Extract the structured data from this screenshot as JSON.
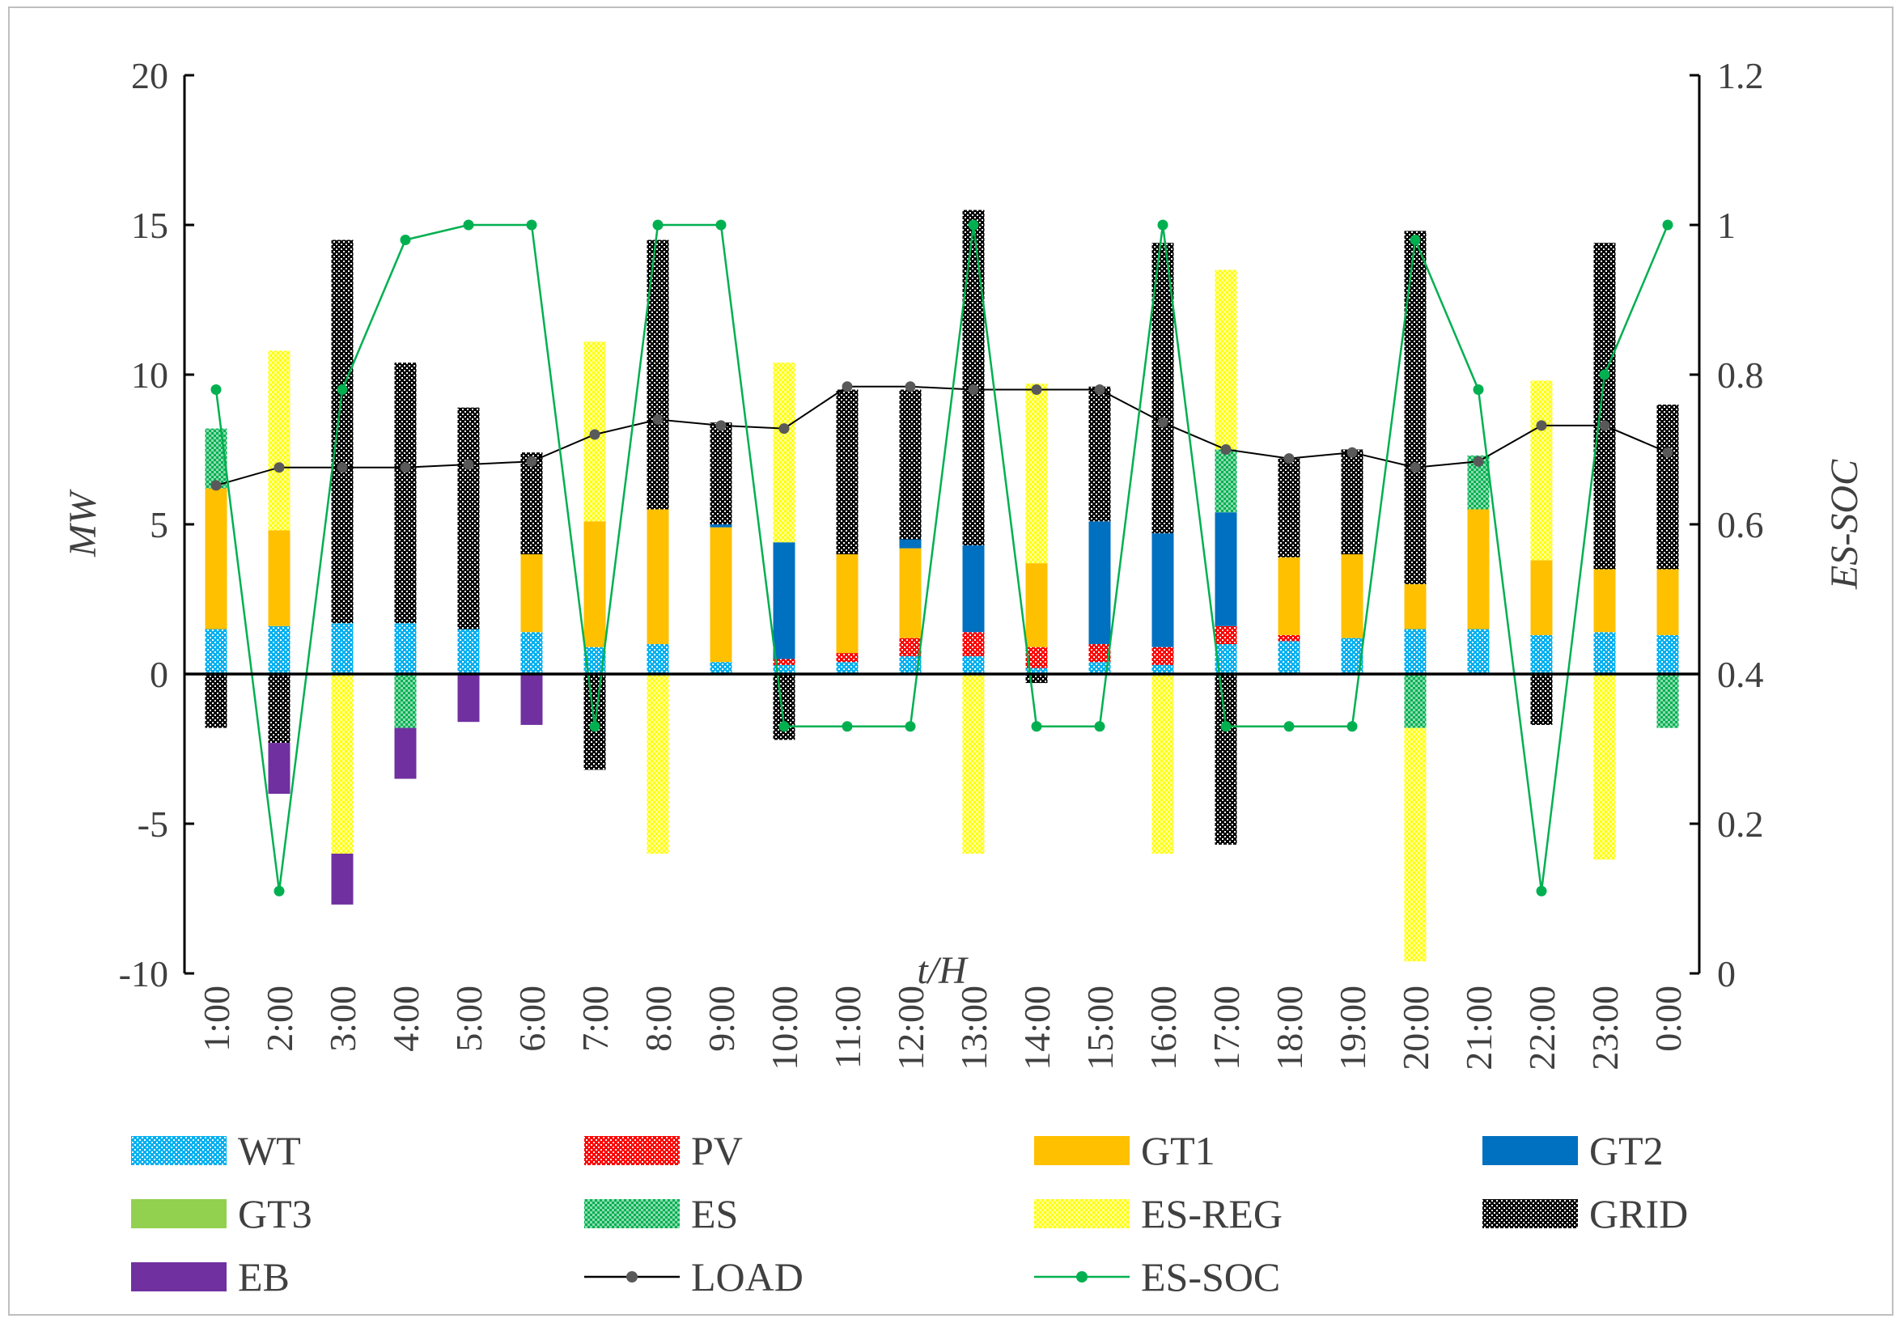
{
  "chart_data": {
    "type": "bar",
    "stacked": true,
    "xlabel": "t/H",
    "ylabel": "MW",
    "y2label": "ES-SOC",
    "ylim": [
      -10,
      20
    ],
    "y2lim": [
      0,
      1.2
    ],
    "yticks": [
      "20",
      "15",
      "10",
      "5",
      "0",
      "-5",
      "-10"
    ],
    "y2ticks": [
      "1.2",
      "1",
      "0.8",
      "0.6",
      "0.4",
      "0.2",
      "0"
    ],
    "categories": [
      "1:00",
      "2:00",
      "3:00",
      "4:00",
      "5:00",
      "6:00",
      "7:00",
      "8:00",
      "9:00",
      "10:00",
      "11:00",
      "12:00",
      "13:00",
      "14:00",
      "15:00",
      "16:00",
      "17:00",
      "18:00",
      "19:00",
      "20:00",
      "21:00",
      "22:00",
      "23:00",
      "0:00"
    ],
    "series": [
      {
        "name": "WT",
        "color": "#00b0f0",
        "pattern": "dots",
        "values": [
          1.5,
          1.6,
          1.7,
          1.7,
          1.5,
          1.4,
          0.9,
          1.0,
          0.4,
          0.3,
          0.4,
          0.6,
          0.6,
          0.2,
          0.4,
          0.3,
          1.0,
          1.1,
          1.2,
          1.5,
          1.5,
          1.3,
          1.4,
          1.3
        ]
      },
      {
        "name": "PV",
        "color": "#ff0000",
        "pattern": "dots",
        "values": [
          0,
          0,
          0,
          0,
          0,
          0,
          0,
          0,
          0,
          0.2,
          0.3,
          0.6,
          0.8,
          0.7,
          0.6,
          0.6,
          0.6,
          0.2,
          0,
          0,
          0,
          0,
          0,
          0
        ]
      },
      {
        "name": "GT1",
        "color": "#ffc000",
        "pattern": "solid",
        "values": [
          4.7,
          3.2,
          0,
          0,
          0,
          2.6,
          4.2,
          4.5,
          4.5,
          0,
          3.3,
          3.0,
          0,
          2.8,
          0,
          0,
          0,
          2.6,
          2.8,
          1.5,
          4.0,
          2.5,
          2.1,
          2.2
        ]
      },
      {
        "name": "GT2",
        "color": "#0070c0",
        "pattern": "solid",
        "values": [
          0,
          0,
          0,
          0,
          0,
          0,
          0,
          0,
          0.1,
          3.9,
          0,
          0.3,
          2.9,
          0,
          4.1,
          3.8,
          3.8,
          0,
          0,
          0,
          0,
          0,
          0,
          0
        ]
      },
      {
        "name": "GT3",
        "color": "#92d050",
        "pattern": "solid",
        "values": [
          0,
          0,
          0,
          0,
          0,
          0,
          0,
          0,
          0,
          0,
          0,
          0,
          0,
          0,
          0,
          0,
          0,
          0,
          0,
          0,
          0,
          0,
          0,
          0
        ]
      },
      {
        "name": "ES",
        "color": "#00b050",
        "pattern": "check",
        "values": [
          2.0,
          0,
          0,
          -1.8,
          0,
          0,
          0,
          0,
          0,
          0,
          0,
          0,
          0,
          0,
          0,
          0,
          2.1,
          0,
          0,
          -1.8,
          1.8,
          0,
          0,
          -1.8
        ]
      },
      {
        "name": "ES-REG",
        "color": "#ffff00",
        "pattern": "check",
        "values": [
          0,
          6.0,
          -6.0,
          0,
          0,
          0,
          6.0,
          -6.0,
          0,
          6.0,
          0,
          0,
          -6.0,
          6.0,
          0,
          -6.0,
          6.0,
          0,
          0,
          -7.8,
          0,
          6.0,
          -6.2,
          0
        ]
      },
      {
        "name": "GRID",
        "color": "#000000",
        "pattern": "check",
        "values": [
          -1.8,
          -2.3,
          12.8,
          8.7,
          7.4,
          3.4,
          -3.2,
          9.0,
          3.4,
          -2.2,
          5.5,
          5.0,
          11.2,
          -0.3,
          4.5,
          9.7,
          -5.7,
          3.3,
          3.5,
          11.8,
          0,
          -1.7,
          10.9,
          5.5
        ]
      },
      {
        "name": "EB",
        "color": "#7030a0",
        "pattern": "solid",
        "values": [
          0,
          -1.7,
          -1.7,
          -1.7,
          -1.6,
          -1.7,
          0,
          0,
          0,
          0,
          0,
          0,
          0,
          0,
          0,
          0,
          0,
          0,
          0,
          0,
          0,
          0,
          0,
          0
        ]
      }
    ],
    "lines": [
      {
        "name": "LOAD",
        "axis": "left",
        "color": "#000000",
        "marker_color": "#595959",
        "values": [
          6.3,
          6.9,
          6.9,
          6.9,
          7.0,
          7.1,
          8.0,
          8.5,
          8.3,
          8.2,
          9.6,
          9.6,
          9.5,
          9.5,
          9.5,
          8.4,
          7.5,
          7.2,
          7.4,
          6.9,
          7.1,
          8.3,
          8.3,
          7.4
        ]
      },
      {
        "name": "ES-SOC",
        "axis": "right",
        "color": "#00b050",
        "marker_color": "#00b050",
        "values": [
          0.78,
          0.11,
          0.78,
          0.98,
          1.0,
          1.0,
          0.33,
          1.0,
          1.0,
          0.33,
          0.33,
          0.33,
          1.0,
          0.33,
          0.33,
          1.0,
          0.33,
          0.33,
          0.33,
          0.98,
          0.78,
          0.11,
          0.8,
          1.0
        ]
      }
    ],
    "legend": [
      "WT",
      "PV",
      "GT1",
      "GT2",
      "GT3",
      "ES",
      "ES-REG",
      "GRID",
      "EB",
      "LOAD",
      "ES-SOC"
    ]
  }
}
